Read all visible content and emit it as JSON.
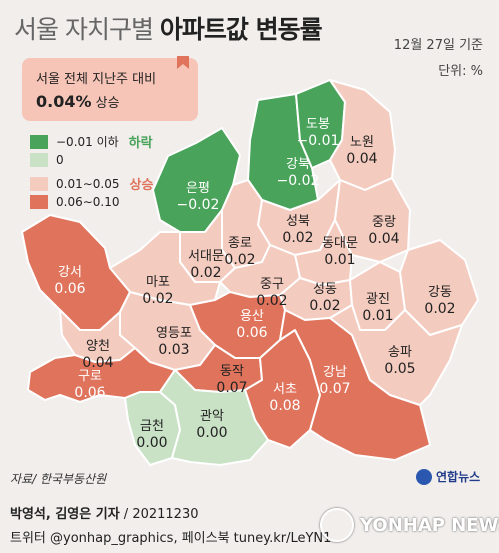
{
  "title": {
    "light": "서울 자치구별 ",
    "bold": "아파트값 변동률"
  },
  "date": "12월 27일 기준",
  "unit": "단위: %",
  "summary": {
    "line1": "서울 전체 지난주 대비",
    "value": "0.04%",
    "suffix": " 상승"
  },
  "legend": [
    {
      "label": "−0.01 이하",
      "tag": "하락",
      "color": "#4aa35a",
      "tag_color": "#4aa35a"
    },
    {
      "label": "0",
      "tag": "",
      "color": "#c9e2c6",
      "tag_color": ""
    },
    {
      "label": "0.01∼0.05",
      "tag": "상승",
      "color": "#f4cbbf",
      "tag_color": "#e0735b"
    },
    {
      "label": "0.06∼0.10",
      "tag": "",
      "color": "#e0735b",
      "tag_color": ""
    }
  ],
  "districts": [
    {
      "name": "도봉",
      "value": "−0.01"
    },
    {
      "name": "노원",
      "value": "0.04"
    },
    {
      "name": "강북",
      "value": "−0.02"
    },
    {
      "name": "은평",
      "value": "−0.02"
    },
    {
      "name": "성북",
      "value": "0.02"
    },
    {
      "name": "중랑",
      "value": "0.04"
    },
    {
      "name": "종로",
      "value": "0.02"
    },
    {
      "name": "서대문",
      "value": "0.02"
    },
    {
      "name": "동대문",
      "value": "0.01"
    },
    {
      "name": "마포",
      "value": "0.02"
    },
    {
      "name": "중구",
      "value": "0.02"
    },
    {
      "name": "강서",
      "value": "0.06"
    },
    {
      "name": "성동",
      "value": "0.02"
    },
    {
      "name": "광진",
      "value": "0.01"
    },
    {
      "name": "강동",
      "value": "0.02"
    },
    {
      "name": "용산",
      "value": "0.06"
    },
    {
      "name": "영등포",
      "value": "0.03"
    },
    {
      "name": "양천",
      "value": "0.04"
    },
    {
      "name": "송파",
      "value": "0.05"
    },
    {
      "name": "구로",
      "value": "0.06"
    },
    {
      "name": "동작",
      "value": "0.07"
    },
    {
      "name": "강남",
      "value": "0.07"
    },
    {
      "name": "서초",
      "value": "0.08"
    },
    {
      "name": "금천",
      "value": "0.00"
    },
    {
      "name": "관악",
      "value": "0.00"
    }
  ],
  "source": "자료/ 한국부동산원",
  "logo_small": "연합뉴스",
  "credit": {
    "bold": "박영석, 김영은 기자",
    "rest": " / 20211230"
  },
  "twitter": "트위터 @yonhap_graphics, 페이스북 tuney.kr/LeYN1",
  "watermark": "YONHAP NEWS",
  "colors": {
    "fall": "#4aa35a",
    "zero": "#c9e2c6",
    "rise_low": "#f4cbbf",
    "rise_high": "#e0735b",
    "border": "#ffffff"
  }
}
